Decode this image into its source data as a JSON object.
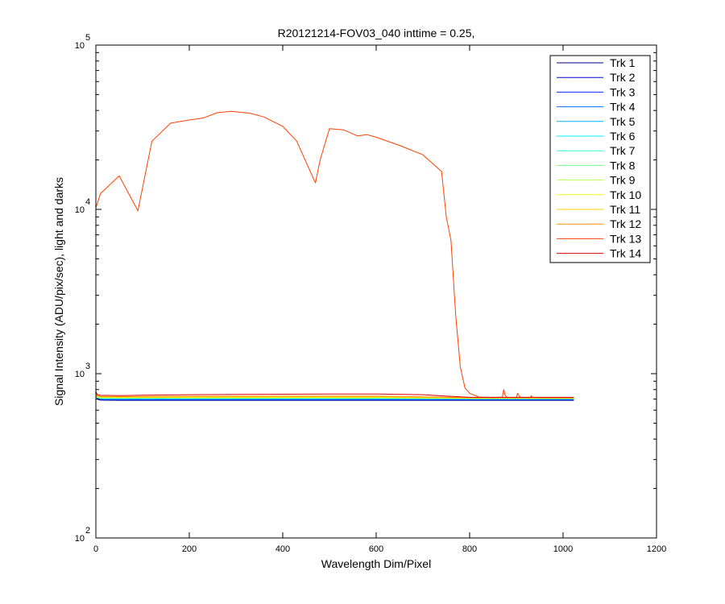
{
  "chart_data": {
    "type": "line",
    "title": "R20121214-FOV03_040 inttime = 0.25,",
    "xlabel": "Wavelength Dim/Pixel",
    "ylabel": "Signal Intensity (ADU/pix/sec), light and darks",
    "xlim": [
      0,
      1200
    ],
    "ylim": [
      100,
      100000
    ],
    "yscale": "log",
    "xticks": [
      "0",
      "200",
      "400",
      "600",
      "800",
      "1000",
      "1200"
    ],
    "yticks": [
      {
        "base": "10",
        "exp": "2"
      },
      {
        "base": "10",
        "exp": "3"
      },
      {
        "base": "10",
        "exp": "4"
      },
      {
        "base": "10",
        "exp": "5"
      }
    ],
    "grid": false,
    "legend_position": "top-right",
    "series": [
      {
        "name": "Trk 1",
        "color": "#00008f",
        "x": [
          0,
          3,
          10,
          50,
          200,
          400,
          600,
          800,
          1023
        ],
        "y": [
          780,
          700,
          690,
          688,
          688,
          688,
          688,
          688,
          688
        ]
      },
      {
        "name": "Trk 2",
        "color": "#0000df",
        "x": [
          0,
          3,
          10,
          50,
          200,
          400,
          600,
          800,
          1023
        ],
        "y": [
          760,
          705,
          695,
          693,
          693,
          693,
          693,
          693,
          693
        ]
      },
      {
        "name": "Trk 3",
        "color": "#0030ff",
        "x": [
          0,
          3,
          10,
          50,
          200,
          400,
          600,
          800,
          1023
        ],
        "y": [
          750,
          708,
          698,
          697,
          697,
          697,
          697,
          697,
          697
        ]
      },
      {
        "name": "Trk 4",
        "color": "#0070ff",
        "x": [
          0,
          3,
          10,
          50,
          200,
          400,
          600,
          800,
          1023
        ],
        "y": [
          745,
          710,
          700,
          699,
          699,
          699,
          699,
          699,
          699
        ]
      },
      {
        "name": "Trk 5",
        "color": "#00afff",
        "x": [
          0,
          3,
          10,
          50,
          200,
          400,
          600,
          800,
          1023
        ],
        "y": [
          745,
          712,
          703,
          702,
          702,
          702,
          702,
          700,
          700
        ]
      },
      {
        "name": "Trk 6",
        "color": "#00efff",
        "x": [
          0,
          3,
          10,
          50,
          200,
          400,
          600,
          800,
          1023
        ],
        "y": [
          748,
          715,
          706,
          705,
          705,
          705,
          705,
          702,
          702
        ]
      },
      {
        "name": "Trk 7",
        "color": "#30ffcf",
        "x": [
          0,
          3,
          10,
          50,
          200,
          400,
          600,
          800,
          1023
        ],
        "y": [
          750,
          718,
          709,
          708,
          708,
          708,
          708,
          704,
          704
        ]
      },
      {
        "name": "Trk 8",
        "color": "#70ff8f",
        "x": [
          0,
          3,
          10,
          50,
          200,
          400,
          600,
          800,
          1023
        ],
        "y": [
          752,
          720,
          712,
          711,
          711,
          711,
          711,
          706,
          706
        ]
      },
      {
        "name": "Trk 9",
        "color": "#afff50",
        "x": [
          0,
          3,
          10,
          50,
          200,
          400,
          600,
          800,
          1023
        ],
        "y": [
          755,
          722,
          715,
          714,
          714,
          714,
          714,
          708,
          708
        ]
      },
      {
        "name": "Trk 10",
        "color": "#efff10",
        "x": [
          0,
          3,
          10,
          50,
          200,
          400,
          600,
          800,
          1023
        ],
        "y": [
          758,
          725,
          718,
          717,
          717,
          717,
          717,
          710,
          710
        ]
      },
      {
        "name": "Trk 11",
        "color": "#ffcf00",
        "x": [
          0,
          3,
          10,
          50,
          200,
          400,
          600,
          800,
          1023
        ],
        "y": [
          760,
          728,
          722,
          721,
          722,
          722,
          722,
          712,
          712
        ]
      },
      {
        "name": "Trk 12",
        "color": "#ff8f00",
        "x": [
          0,
          3,
          10,
          50,
          200,
          400,
          600,
          800,
          1023
        ],
        "y": [
          770,
          732,
          726,
          725,
          728,
          730,
          730,
          715,
          715
        ]
      },
      {
        "name": "Trk 13",
        "color": "#ff3f00",
        "x": [
          0,
          10,
          50,
          90,
          120,
          160,
          200,
          230,
          260,
          290,
          330,
          360,
          400,
          430,
          455,
          470,
          480,
          500,
          530,
          560,
          580,
          600,
          650,
          700,
          740,
          750,
          760,
          770,
          780,
          790,
          800,
          820,
          850,
          870,
          873,
          876,
          880,
          900,
          903,
          906,
          910,
          930,
          932,
          934,
          950,
          1000,
          1023
        ],
        "y": [
          10200,
          12500,
          16000,
          9800,
          26000,
          33500,
          35000,
          36000,
          38800,
          39500,
          38500,
          36500,
          32000,
          26000,
          18000,
          14500,
          20000,
          31000,
          30500,
          28000,
          28500,
          27500,
          24500,
          21500,
          17000,
          9000,
          6500,
          2300,
          1100,
          820,
          760,
          720,
          715,
          720,
          800,
          740,
          718,
          715,
          760,
          730,
          716,
          715,
          735,
          718,
          715,
          715,
          715
        ]
      },
      {
        "name": "Trk 14",
        "color": "#df0000",
        "x": [
          0,
          3,
          10,
          50,
          100,
          200,
          300,
          400,
          500,
          600,
          700,
          750,
          800,
          1023
        ],
        "y": [
          780,
          745,
          738,
          736,
          740,
          745,
          748,
          750,
          752,
          752,
          745,
          730,
          718,
          718
        ]
      }
    ]
  }
}
